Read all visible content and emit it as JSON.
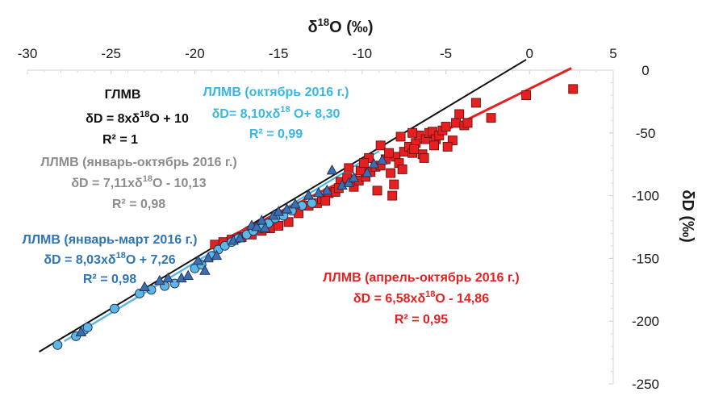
{
  "chart_data": {
    "type": "scatter",
    "xlabel": "δ18O (‰)",
    "ylabel": "δD (‰)",
    "xlim": [
      -30,
      5
    ],
    "ylim": [
      -250,
      0
    ],
    "xticks": [
      "-30",
      "-25",
      "-20",
      "-15",
      "-10",
      "-5",
      "0",
      "5"
    ],
    "yticks": [
      "0",
      "-50",
      "-100",
      "-150",
      "-200",
      "-250"
    ],
    "x_axis_position": "top",
    "y_axis_position": "right",
    "grid": false,
    "colors": {
      "gmwl": "#111111",
      "jan_mar": "#5bb8e6",
      "jan_mar_text": "#2e75b6",
      "oct": "#38b7e6",
      "apr_oct": "#e62020",
      "jan_oct_text": "#8c8c8c",
      "triangle": "#3b6fb2",
      "circle": "#5bb8e6",
      "square": "#e62020",
      "marker_edge": "#1f2d50"
    },
    "lines": [
      {
        "key": "gmwl",
        "slope": 8.0,
        "intercept": 10.0,
        "x_range": [
          -29.3,
          -0.2
        ]
      },
      {
        "key": "jan_mar",
        "slope": 8.03,
        "intercept": 7.26,
        "x_range": [
          -27.8,
          -15.5
        ]
      },
      {
        "key": "oct",
        "slope": 8.1,
        "intercept": 8.3,
        "x_range": [
          -16.0,
          -9.0
        ]
      },
      {
        "key": "apr_oct",
        "slope": 6.58,
        "intercept": -14.86,
        "x_range": [
          -19.0,
          2.5
        ]
      }
    ],
    "series": [
      {
        "marker": "circle",
        "points": [
          [
            -28.2,
            -219
          ],
          [
            -27.1,
            -212
          ],
          [
            -26.6,
            -207
          ],
          [
            -26.4,
            -205
          ],
          [
            -24.8,
            -190
          ],
          [
            -23.3,
            -178
          ],
          [
            -22.6,
            -175
          ],
          [
            -21.8,
            -172
          ],
          [
            -21.2,
            -170
          ],
          [
            -20.0,
            -158
          ],
          [
            -19.6,
            -155
          ],
          [
            -19.0,
            -148
          ],
          [
            -18.6,
            -143
          ],
          [
            -18.2,
            -140
          ],
          [
            -17.8,
            -137
          ],
          [
            -17.4,
            -134
          ],
          [
            -16.9,
            -131
          ],
          [
            -16.5,
            -128
          ],
          [
            -16.0,
            -126
          ],
          [
            -15.6,
            -122
          ],
          [
            -15.2,
            -118
          ],
          [
            -14.7,
            -116
          ],
          [
            -14.2,
            -112
          ],
          [
            -13.6,
            -108
          ],
          [
            -13.0,
            -106
          ]
        ]
      },
      {
        "marker": "triangle",
        "points": [
          [
            -26.8,
            -209
          ],
          [
            -23.0,
            -173
          ],
          [
            -22.1,
            -168
          ],
          [
            -21.6,
            -166
          ],
          [
            -20.8,
            -166
          ],
          [
            -20.4,
            -164
          ],
          [
            -19.8,
            -152
          ],
          [
            -19.2,
            -150
          ],
          [
            -19.4,
            -160
          ],
          [
            -18.7,
            -148
          ],
          [
            -17.7,
            -136
          ],
          [
            -17.3,
            -134
          ],
          [
            -16.6,
            -124
          ],
          [
            -16.3,
            -125
          ],
          [
            -16.0,
            -120
          ],
          [
            -15.8,
            -126
          ],
          [
            -15.3,
            -116
          ],
          [
            -15.0,
            -113
          ],
          [
            -14.5,
            -111
          ],
          [
            -14.0,
            -107
          ],
          [
            -13.2,
            -100
          ],
          [
            -12.6,
            -98
          ],
          [
            -12.1,
            -96
          ],
          [
            -11.8,
            -80
          ],
          [
            -11.2,
            -92
          ],
          [
            -10.8,
            -90
          ],
          [
            -10.5,
            -86
          ],
          [
            -9.7,
            -82
          ],
          [
            -9.3,
            -75
          ],
          [
            -8.8,
            -72
          ]
        ]
      },
      {
        "marker": "square",
        "points": [
          [
            -18.8,
            -139
          ],
          [
            -18.3,
            -137
          ],
          [
            -17.8,
            -135
          ],
          [
            -17.2,
            -133
          ],
          [
            -16.6,
            -131
          ],
          [
            -16.0,
            -128
          ],
          [
            -15.5,
            -126
          ],
          [
            -15.0,
            -124
          ],
          [
            -14.4,
            -121
          ],
          [
            -13.8,
            -114
          ],
          [
            -13.2,
            -108
          ],
          [
            -12.7,
            -106
          ],
          [
            -12.4,
            -103
          ],
          [
            -12.0,
            -98
          ],
          [
            -11.6,
            -97
          ],
          [
            -11.3,
            -89
          ],
          [
            -10.9,
            -86
          ],
          [
            -10.5,
            -93
          ],
          [
            -10.2,
            -88
          ],
          [
            -9.8,
            -85
          ],
          [
            -9.5,
            -81
          ],
          [
            -9.2,
            -77
          ],
          [
            -8.9,
            -76
          ],
          [
            -8.6,
            -71
          ],
          [
            -8.3,
            -82
          ],
          [
            -8.0,
            -69
          ],
          [
            -7.8,
            -74
          ],
          [
            -7.5,
            -65
          ],
          [
            -7.2,
            -61
          ],
          [
            -7.0,
            -66
          ],
          [
            -6.8,
            -58
          ],
          [
            -6.6,
            -52
          ],
          [
            -6.4,
            -67
          ],
          [
            -6.2,
            -55
          ],
          [
            -6.0,
            -50
          ],
          [
            -5.8,
            -49
          ],
          [
            -5.6,
            -55
          ],
          [
            -5.4,
            -52
          ],
          [
            -5.2,
            -48
          ],
          [
            -5.0,
            -45
          ],
          [
            -4.6,
            -56
          ],
          [
            -4.4,
            -42
          ],
          [
            -4.2,
            -35
          ],
          [
            -3.9,
            -44
          ],
          [
            -3.7,
            -42
          ],
          [
            -3.2,
            -26
          ],
          [
            -8.9,
            -60
          ],
          [
            -8.4,
            -66
          ],
          [
            -7.7,
            -53
          ],
          [
            -7.0,
            -50
          ],
          [
            -6.3,
            -70
          ],
          [
            -5.7,
            -60
          ],
          [
            -9.6,
            -70
          ],
          [
            -10.1,
            -80
          ],
          [
            -10.8,
            -78
          ],
          [
            -11.4,
            -94
          ],
          [
            -12.2,
            -104
          ],
          [
            -8.1,
            -91
          ],
          [
            -7.6,
            -79
          ],
          [
            -9.1,
            -96
          ],
          [
            -8.2,
            -100
          ],
          [
            -6.9,
            -63
          ],
          [
            -9.9,
            -74
          ],
          [
            -4.9,
            -61
          ],
          [
            -2.3,
            -38
          ],
          [
            -0.2,
            -20
          ],
          [
            2.6,
            -15
          ]
        ]
      }
    ],
    "annotations": {
      "gmwl": {
        "title": "ГЛМВ",
        "eq_a": "δD = 8xδ",
        "sup": "18",
        "eq_b": "O + 10",
        "r2": "R² = 1"
      },
      "oct": {
        "title": "ЛЛМВ (октябрь 2016 г.)",
        "eq_a": "δD= 8,10xδ",
        "sup": "18",
        "eq_b": " O+ 8,30",
        "r2": "R² = 0,99"
      },
      "jan_oct": {
        "title": "ЛЛМВ (январь-октябрь 2016 г.)",
        "eq": "δD = 7,11xδ18O - 10,13",
        "r2": "R² = 0,98"
      },
      "jan_mar": {
        "title": "ЛЛМВ (январь-март 2016 г.)",
        "eq_a": "δD = 8,03xδ",
        "sup": "18",
        "eq_b": "O + 7,26",
        "r2": "R² = 0,98"
      },
      "apr_oct": {
        "title": "ЛЛМВ (апрель-октябрь 2016 г.)",
        "eq_a": "δD = 6,58xδ",
        "sup": "18",
        "eq_b": "O - 14,86",
        "r2": "R² = 0,95"
      }
    }
  }
}
